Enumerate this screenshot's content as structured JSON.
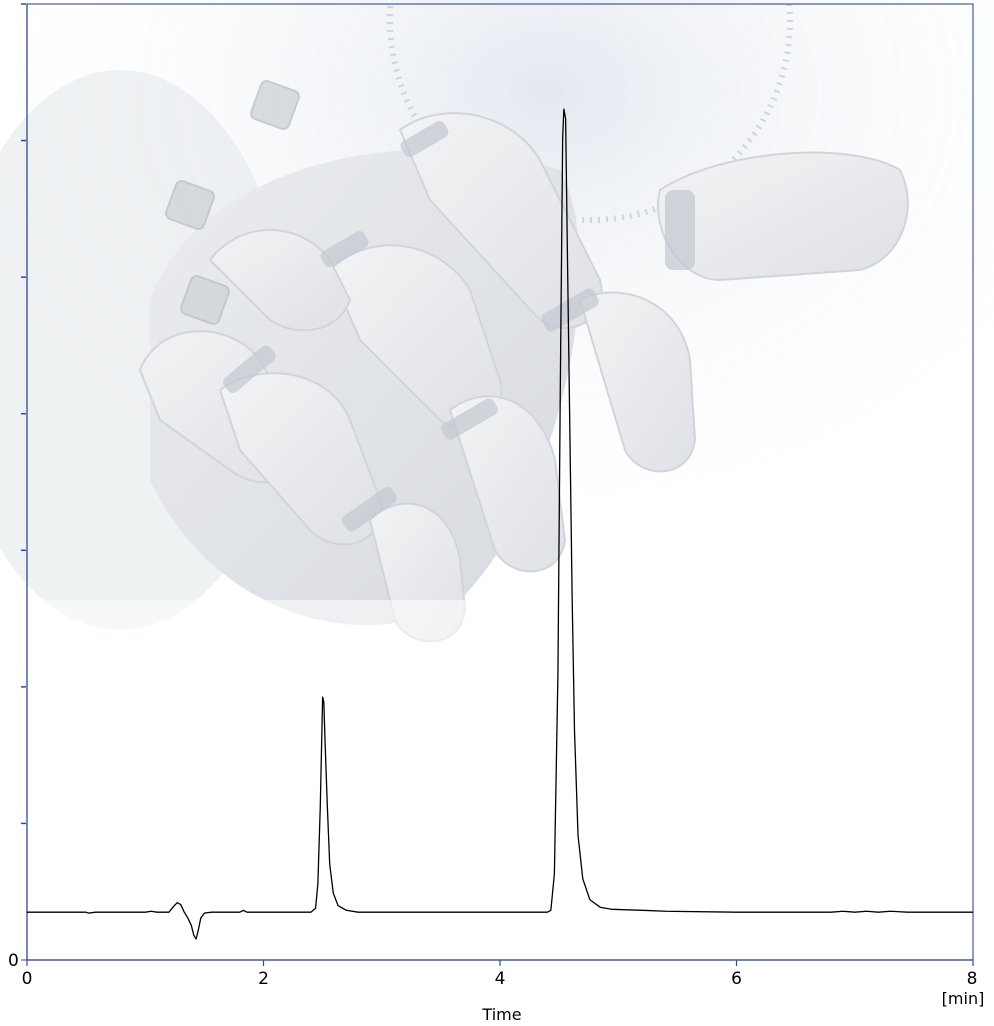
{
  "chart_data": {
    "type": "line",
    "xlabel": "Time",
    "xunit": "[min]",
    "ylabel": "",
    "xlim": [
      0,
      8
    ],
    "ylim": [
      0,
      100
    ],
    "x_ticks": [
      "0",
      "2",
      "4",
      "6",
      "8"
    ],
    "y_ticks": [
      "0"
    ],
    "grid": false,
    "legend": "none",
    "background": "faded photograph of a white robotic hand reaching downward",
    "colors": {
      "axis": "#1f3a8a",
      "tick": "#2a4aa8",
      "trace": "#000000",
      "background": "#ffffff"
    },
    "series": [
      {
        "points": [
          [
            0.0,
            5.0
          ],
          [
            0.5,
            5.0
          ],
          [
            0.52,
            4.9
          ],
          [
            0.58,
            5.0
          ],
          [
            1.0,
            5.0
          ],
          [
            1.05,
            5.1
          ],
          [
            1.1,
            5.0
          ],
          [
            1.2,
            5.0
          ],
          [
            1.24,
            5.6
          ],
          [
            1.27,
            6.0
          ],
          [
            1.3,
            5.8
          ],
          [
            1.33,
            5.0
          ],
          [
            1.36,
            4.4
          ],
          [
            1.39,
            3.6
          ],
          [
            1.41,
            2.6
          ],
          [
            1.43,
            2.2
          ],
          [
            1.45,
            3.2
          ],
          [
            1.47,
            4.4
          ],
          [
            1.5,
            4.9
          ],
          [
            1.56,
            5.0
          ],
          [
            1.8,
            5.0
          ],
          [
            1.83,
            5.2
          ],
          [
            1.86,
            5.0
          ],
          [
            2.4,
            5.0
          ],
          [
            2.44,
            5.4
          ],
          [
            2.46,
            8.0
          ],
          [
            2.48,
            16.0
          ],
          [
            2.5,
            27.5
          ],
          [
            2.51,
            27.0
          ],
          [
            2.52,
            23.0
          ],
          [
            2.54,
            16.0
          ],
          [
            2.56,
            10.0
          ],
          [
            2.59,
            7.0
          ],
          [
            2.63,
            5.7
          ],
          [
            2.7,
            5.2
          ],
          [
            2.8,
            5.0
          ],
          [
            4.4,
            5.0
          ],
          [
            4.43,
            5.2
          ],
          [
            4.46,
            9.0
          ],
          [
            4.49,
            30.0
          ],
          [
            4.51,
            60.0
          ],
          [
            4.53,
            86.0
          ],
          [
            4.54,
            89.0
          ],
          [
            4.555,
            88.0
          ],
          [
            4.57,
            74.0
          ],
          [
            4.59,
            56.0
          ],
          [
            4.61,
            38.0
          ],
          [
            4.63,
            24.0
          ],
          [
            4.66,
            13.0
          ],
          [
            4.7,
            8.5
          ],
          [
            4.76,
            6.3
          ],
          [
            4.85,
            5.5
          ],
          [
            4.95,
            5.3
          ],
          [
            5.2,
            5.2
          ],
          [
            5.4,
            5.1
          ],
          [
            6.0,
            5.0
          ],
          [
            6.8,
            5.0
          ],
          [
            6.9,
            5.1
          ],
          [
            7.0,
            5.0
          ],
          [
            7.1,
            5.1
          ],
          [
            7.2,
            5.0
          ],
          [
            7.3,
            5.1
          ],
          [
            7.45,
            5.0
          ],
          [
            8.0,
            5.0
          ]
        ]
      }
    ]
  }
}
